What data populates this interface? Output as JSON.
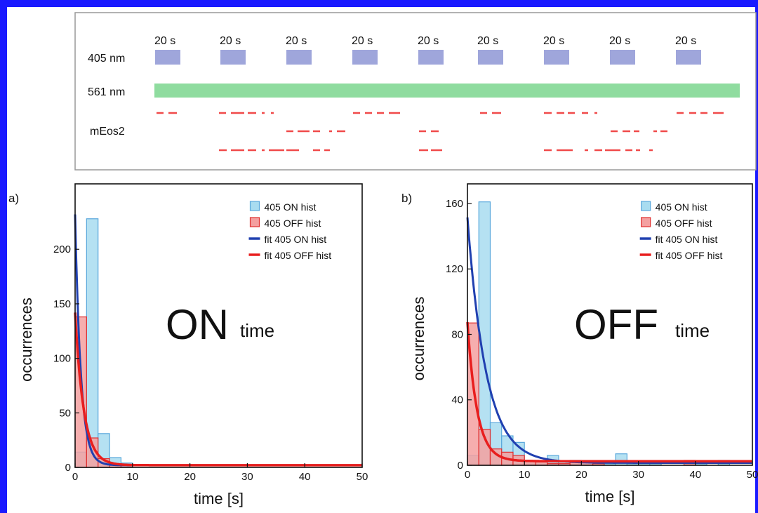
{
  "schematic": {
    "interval_label": "20 s",
    "row_labels": [
      "405 nm",
      "561 nm",
      "mEos2"
    ],
    "pulse_count": 9,
    "colors": {
      "pulse405": "#9fa6db",
      "laser561": "#8fdc9f",
      "emission": "#f04a4a"
    }
  },
  "chart_data": [
    {
      "type": "bar",
      "panel_label": "a)",
      "annotation_main": "ON",
      "annotation_sub": "time",
      "xlabel": "time [s]",
      "ylabel": "occurrences",
      "xlim": [
        0,
        50
      ],
      "ylim": [
        0,
        260
      ],
      "xticks": [
        0,
        10,
        20,
        30,
        40,
        50
      ],
      "yticks": [
        0,
        50,
        100,
        150,
        200
      ],
      "bin_width": 2,
      "legend_position": "top-right",
      "series": [
        {
          "name": "405 ON hist",
          "kind": "hist",
          "color": "#a8dcf0",
          "edge": "#5aa8dc",
          "bins": [
            [
              0,
              14
            ],
            [
              2,
              228
            ],
            [
              4,
              31
            ],
            [
              6,
              9
            ],
            [
              8,
              4
            ]
          ]
        },
        {
          "name": "405 OFF hist",
          "kind": "hist",
          "color": "#f4a0a0",
          "edge": "#e03030",
          "bins": [
            [
              0,
              138
            ],
            [
              2,
              27
            ],
            [
              4,
              8
            ],
            [
              6,
              3
            ],
            [
              8,
              2
            ]
          ]
        },
        {
          "name": "fit 405 ON hist",
          "kind": "fit",
          "color": "#2040b0",
          "amplitude": 230,
          "tau": 1.0,
          "offset": 2
        },
        {
          "name": "fit 405 OFF hist",
          "kind": "fit",
          "color": "#e81e1e",
          "amplitude": 140,
          "tau": 1.5,
          "offset": 2
        }
      ]
    },
    {
      "type": "bar",
      "panel_label": "b)",
      "annotation_main": "OFF",
      "annotation_sub": "time",
      "xlabel": "time [s]",
      "ylabel": "occurrences",
      "xlim": [
        0,
        50
      ],
      "ylim": [
        0,
        172
      ],
      "xticks": [
        0,
        10,
        20,
        30,
        40,
        50
      ],
      "yticks": [
        0,
        40,
        80,
        120,
        160
      ],
      "bin_width": 2,
      "legend_position": "top-right",
      "series": [
        {
          "name": "405 ON hist",
          "kind": "hist",
          "color": "#a8dcf0",
          "edge": "#5aa8dc",
          "bins": [
            [
              0,
              6
            ],
            [
              2,
              161
            ],
            [
              4,
              26
            ],
            [
              6,
              18
            ],
            [
              8,
              14
            ],
            [
              10,
              3
            ],
            [
              12,
              2
            ],
            [
              14,
              6
            ],
            [
              16,
              2
            ],
            [
              18,
              3
            ],
            [
              20,
              2
            ],
            [
              22,
              2
            ],
            [
              24,
              1
            ],
            [
              26,
              7
            ],
            [
              28,
              1
            ],
            [
              30,
              1
            ],
            [
              32,
              1
            ],
            [
              40,
              1
            ],
            [
              44,
              3
            ]
          ]
        },
        {
          "name": "405 OFF hist",
          "kind": "hist",
          "color": "#f4a0a0",
          "edge": "#e03030",
          "bins": [
            [
              0,
              87
            ],
            [
              2,
              22
            ],
            [
              4,
              10
            ],
            [
              6,
              8
            ],
            [
              8,
              6
            ],
            [
              10,
              3
            ],
            [
              12,
              2
            ],
            [
              14,
              1
            ],
            [
              16,
              1
            ],
            [
              18,
              2
            ],
            [
              20,
              2
            ],
            [
              22,
              1
            ],
            [
              38,
              3
            ]
          ]
        },
        {
          "name": "fit 405 ON hist",
          "kind": "fit",
          "color": "#2040b0",
          "amplitude": 150,
          "tau": 3.3,
          "offset": 1.5
        },
        {
          "name": "fit 405 OFF hist",
          "kind": "fit",
          "color": "#e81e1e",
          "amplitude": 85,
          "tau": 1.7,
          "offset": 2.5
        }
      ]
    }
  ]
}
